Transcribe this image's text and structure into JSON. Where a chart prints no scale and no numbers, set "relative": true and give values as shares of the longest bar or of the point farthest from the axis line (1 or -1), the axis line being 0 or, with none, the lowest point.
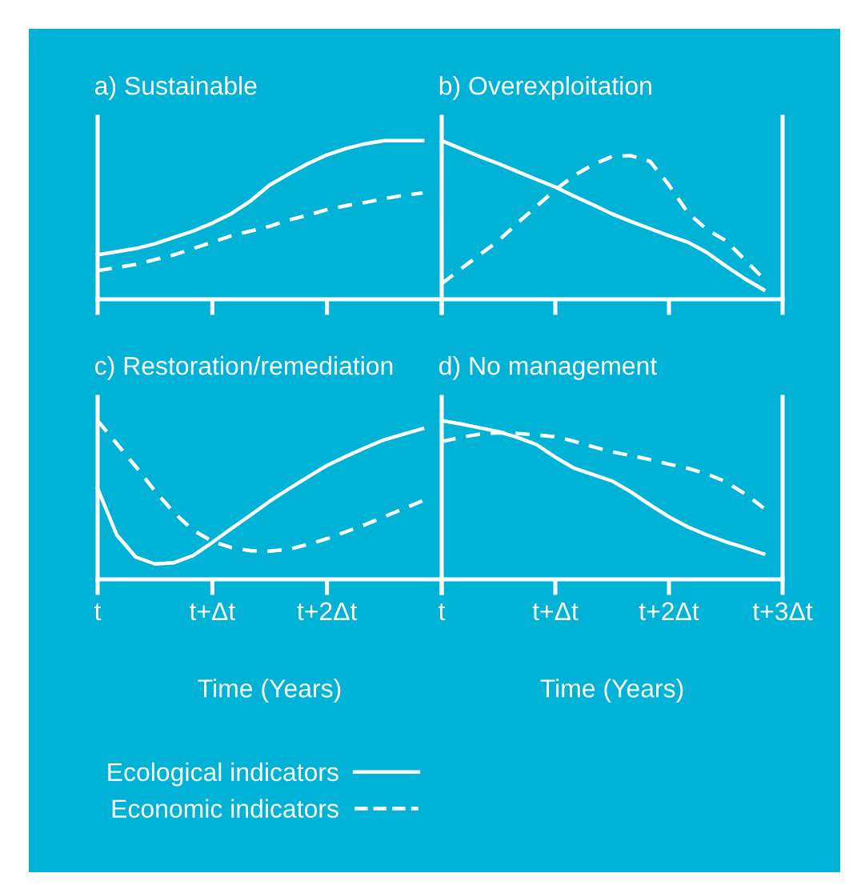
{
  "chart_data": [
    {
      "type": "line",
      "title": "a) Sustainable",
      "relative": true,
      "categories": [
        null,
        null,
        null,
        null,
        null,
        null,
        null,
        null,
        null,
        null,
        null,
        null,
        null,
        null,
        null,
        null,
        null,
        null,
        null
      ],
      "series": [
        {
          "color": "#ffffff",
          "line_style": "solid",
          "values": [
            0.28,
            0.3,
            0.32,
            0.35,
            0.39,
            0.43,
            0.48,
            0.54,
            0.62,
            0.72,
            0.79,
            0.855,
            0.91,
            0.95,
            0.98,
            1,
            1,
            1,
            null
          ]
        },
        {
          "color": "#ffffff",
          "line_style": "dashed",
          "values": [
            0.18,
            0.2,
            0.22,
            0.25,
            0.28,
            0.32,
            0.36,
            0.4,
            0.43,
            0.46,
            0.5,
            0.53,
            0.565,
            0.59,
            0.61,
            0.635,
            0.655,
            0.67,
            null
          ]
        }
      ]
    },
    {
      "type": "line",
      "title": "b) Overexploitation",
      "relative": true,
      "categories": [
        null,
        null,
        null,
        null,
        null,
        null,
        null,
        null,
        null,
        null,
        null,
        null,
        null,
        null,
        null,
        null,
        null,
        null,
        null
      ],
      "series": [
        {
          "color": "#ffffff",
          "line_style": "solid",
          "values": [
            1,
            0.95,
            0.9,
            0.855,
            0.805,
            0.755,
            0.708,
            0.65,
            0.595,
            0.538,
            0.49,
            0.445,
            0.4,
            0.36,
            0.295,
            0.21,
            0.13,
            0.06,
            null
          ]
        },
        {
          "color": "#ffffff",
          "line_style": "dashed",
          "values": [
            0.098,
            0.19,
            0.28,
            0.37,
            0.48,
            0.585,
            0.69,
            0.78,
            0.85,
            0.9,
            0.905,
            0.87,
            0.72,
            0.545,
            0.44,
            0.37,
            0.25,
            0.13,
            null
          ]
        }
      ]
    },
    {
      "type": "line",
      "title": "c) Restoration/remediation",
      "relative": true,
      "xlabel": "Time (Years)",
      "legend": "bottom",
      "categories": [
        "t",
        null,
        null,
        null,
        null,
        null,
        "t+Δt",
        null,
        null,
        null,
        null,
        null,
        "t+2Δt",
        null,
        null,
        null,
        null,
        null,
        null
      ],
      "series": [
        {
          "name": "Ecological indicators",
          "color": "#ffffff",
          "line_style": "solid",
          "values": [
            0.573,
            0.28,
            0.14,
            0.097,
            0.105,
            0.15,
            0.233,
            0.32,
            0.405,
            0.492,
            0.57,
            0.645,
            0.718,
            0.775,
            0.83,
            0.88,
            0.915,
            0.95,
            null
          ]
        },
        {
          "name": "Economic indicators",
          "color": "#ffffff",
          "line_style": "dashed",
          "values": [
            1,
            0.855,
            0.71,
            0.557,
            0.42,
            0.31,
            0.239,
            0.2,
            0.18,
            0.178,
            0.19,
            0.22,
            0.256,
            0.3,
            0.345,
            0.395,
            0.445,
            0.495,
            null
          ]
        }
      ]
    },
    {
      "type": "line",
      "title": "d) No management",
      "relative": true,
      "xlabel": "Time (Years)",
      "categories": [
        "t",
        null,
        null,
        null,
        null,
        null,
        "t+Δt",
        null,
        null,
        null,
        null,
        null,
        "t+2Δt",
        null,
        null,
        null,
        null,
        null,
        "t+3Δt"
      ],
      "series": [
        {
          "color": "#ffffff",
          "line_style": "solid",
          "values": [
            1,
            0.98,
            0.955,
            0.931,
            0.895,
            0.85,
            0.77,
            0.7,
            0.66,
            0.62,
            0.55,
            0.47,
            0.394,
            0.33,
            0.28,
            0.237,
            0.2,
            0.16,
            null
          ]
        },
        {
          "color": "#ffffff",
          "line_style": "dashed",
          "values": [
            0.868,
            0.895,
            0.915,
            0.924,
            0.92,
            0.91,
            0.899,
            0.87,
            0.835,
            0.804,
            0.78,
            0.755,
            0.726,
            0.7,
            0.665,
            0.615,
            0.54,
            0.45,
            null
          ]
        }
      ]
    }
  ]
}
